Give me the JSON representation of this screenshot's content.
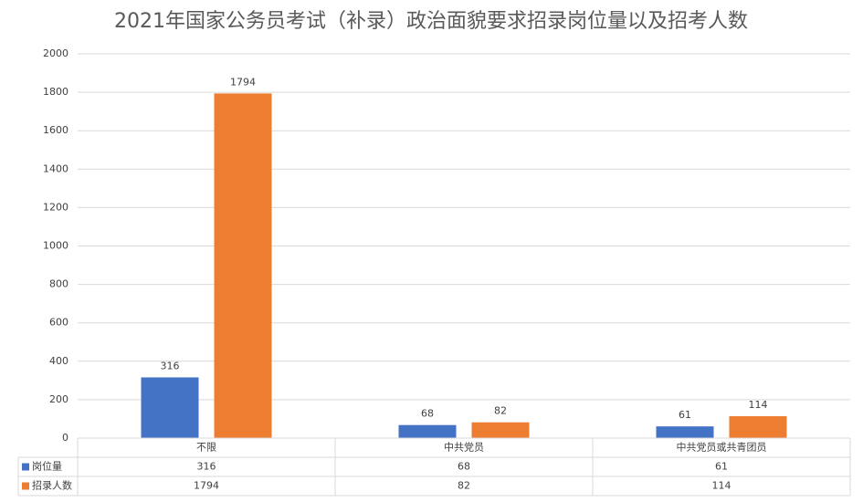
{
  "chart_data": {
    "type": "bar",
    "title": "2021年国家公务员考试（补录）政治面貌要求招录岗位量以及招考人数",
    "categories": [
      "不限",
      "中共党员",
      "中共党员或共青团员"
    ],
    "series": [
      {
        "name": "岗位量",
        "color": "#4472c4",
        "values": [
          316,
          68,
          61
        ]
      },
      {
        "name": "招录人数",
        "color": "#ed7d31",
        "values": [
          1794,
          82,
          114
        ]
      }
    ],
    "ylim": [
      0,
      2000
    ],
    "yticks": [
      0,
      200,
      400,
      600,
      800,
      1000,
      1200,
      1400,
      1600,
      1800,
      2000
    ],
    "grid": true,
    "data_table": true
  }
}
